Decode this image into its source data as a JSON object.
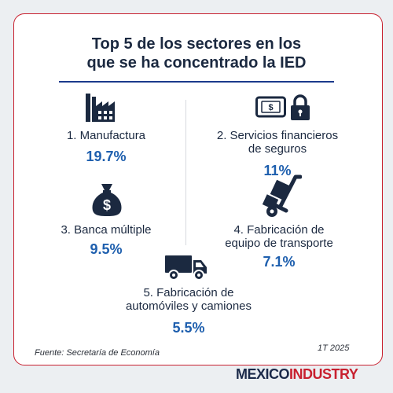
{
  "title_line1": "Top 5 de los sectores en los",
  "title_line2": "que se ha concentrado la IED",
  "sectors": [
    {
      "label_line1": "1. Manufactura",
      "label_line2": "",
      "value": "19.7%",
      "icon": "factory-icon"
    },
    {
      "label_line1": "2. Servicios financieros",
      "label_line2": "de seguros",
      "value": "11%",
      "icon": "money-lock-icon"
    },
    {
      "label_line1": "3. Banca múltiple",
      "label_line2": "",
      "value": "9.5%",
      "icon": "money-bag-icon"
    },
    {
      "label_line1": "4. Fabricación de",
      "label_line2": "equipo de transporte",
      "value": "7.1%",
      "icon": "hand-truck-icon"
    },
    {
      "label_line1": "5. Fabricación de",
      "label_line2": "automóviles y camiones",
      "value": "5.5%",
      "icon": "truck-icon"
    }
  ],
  "source": "Fuente: Secretaría de Economía",
  "period": "1T 2025",
  "brand_part1": "MEXICO",
  "brand_part2": "INDUSTRY",
  "colors": {
    "navy": "#1b2940",
    "accent_blue": "#1e5fae",
    "brand_red": "#c8202f",
    "background": "#eceff2"
  }
}
